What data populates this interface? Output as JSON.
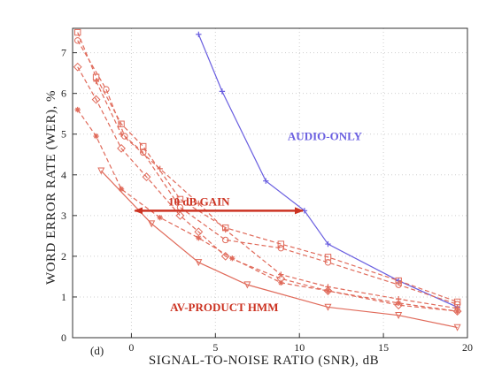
{
  "chart_data": {
    "type": "line",
    "panel_label": "(d)",
    "xlabel": "SIGNAL-TO-NOISE RATIO (SNR), dB",
    "ylabel": "WORD ERROR RATE (WER), %",
    "xlim": [
      -3.5,
      20
    ],
    "ylim": [
      0,
      7.6
    ],
    "x_ticks": [
      0,
      5,
      10,
      15,
      20
    ],
    "x_tick_labels": [
      "0",
      "5",
      "10",
      "15",
      "20"
    ],
    "y_ticks": [
      0,
      1,
      2,
      3,
      4,
      5,
      6,
      7
    ],
    "y_tick_labels": [
      "0",
      "1",
      "2",
      "3",
      "4",
      "5",
      "6",
      "7"
    ],
    "grid": true,
    "colors": {
      "audio": "#6a5fe0",
      "av": "#e06a5a",
      "annotation": "#cc3322"
    },
    "series": [
      {
        "name": "AUDIO-ONLY",
        "color": "#6a5fe0",
        "dash": "solid",
        "marker": "plus",
        "x": [
          4,
          5.4,
          8,
          10.3,
          11.7,
          15.9,
          19.4
        ],
        "y": [
          7.45,
          6.05,
          3.85,
          3.12,
          2.3,
          1.4,
          0.75
        ]
      },
      {
        "name": "AV-PRODUCT HMM",
        "color": "#e06a5a",
        "dash": "solid",
        "marker": "triangle",
        "x": [
          -1.8,
          1.2,
          4,
          6.9,
          11.7,
          15.9,
          19.4
        ],
        "y": [
          4.1,
          2.8,
          1.85,
          1.3,
          0.75,
          0.55,
          0.25
        ]
      },
      {
        "color": "#e06a5a",
        "dash": "dashed",
        "marker": "square",
        "x": [
          -3.2,
          -2.1,
          -0.6,
          0.7,
          2.9,
          5.6,
          8.9,
          11.7,
          15.9,
          19.4
        ],
        "y": [
          7.5,
          6.4,
          5.25,
          4.7,
          3.4,
          2.7,
          2.3,
          1.98,
          1.4,
          0.88
        ]
      },
      {
        "color": "#e06a5a",
        "dash": "dashed",
        "marker": "circle",
        "x": [
          -3.2,
          -1.5,
          -0.4,
          0.7,
          2.9,
          5.6,
          8.9,
          11.7,
          15.9,
          19.4
        ],
        "y": [
          7.3,
          6.1,
          4.95,
          4.55,
          3.2,
          2.4,
          2.2,
          1.85,
          1.3,
          0.82
        ]
      },
      {
        "color": "#e06a5a",
        "dash": "dashed",
        "marker": "plus",
        "x": [
          -2.1,
          -0.6,
          1.7,
          4,
          5.6,
          8.9,
          11.7,
          15.9,
          19.4
        ],
        "y": [
          6.3,
          5.0,
          4.15,
          3.3,
          2.65,
          1.55,
          1.25,
          0.95,
          0.72
        ]
      },
      {
        "color": "#e06a5a",
        "dash": "dashed",
        "marker": "diamond",
        "x": [
          -3.2,
          -2.1,
          -0.6,
          0.9,
          2.9,
          4,
          5.6,
          8.9,
          11.7,
          15.9,
          19.4
        ],
        "y": [
          6.65,
          5.85,
          4.65,
          3.95,
          3.0,
          2.6,
          2.0,
          1.45,
          1.15,
          0.8,
          0.65
        ]
      },
      {
        "color": "#e06a5a",
        "dash": "dashed",
        "marker": "star",
        "x": [
          -3.2,
          -2.1,
          -0.6,
          1.7,
          4,
          6,
          8.9,
          11.7,
          15.9,
          19.4
        ],
        "y": [
          5.6,
          4.95,
          3.65,
          2.95,
          2.45,
          1.95,
          1.35,
          1.15,
          0.85,
          0.65
        ]
      }
    ],
    "annotations": [
      {
        "text": "AUDIO-ONLY",
        "x": 9.3,
        "y": 4.85,
        "color": "#6a5fe0"
      },
      {
        "text": "10 dB  GAIN",
        "x": 2.2,
        "y": 3.25,
        "color": "#cc3322"
      },
      {
        "text": "AV-PRODUCT HMM",
        "x": 2.3,
        "y": 0.65,
        "color": "#cc3322"
      }
    ],
    "gain_arrow": {
      "x_from": 0.2,
      "x_to": 10.2,
      "y": 3.12,
      "color": "#cc3322"
    }
  }
}
